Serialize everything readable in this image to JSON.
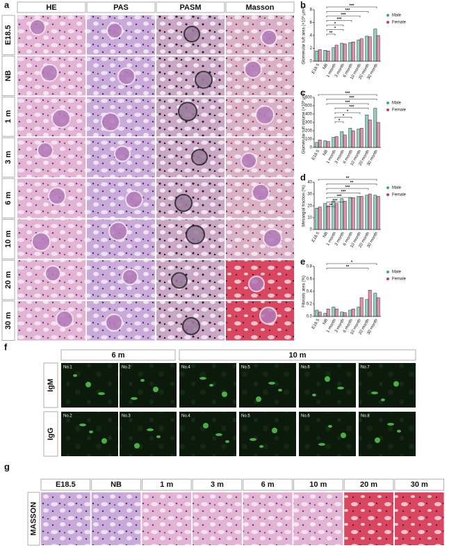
{
  "panel_a": {
    "letter": "a",
    "columns": [
      "HE",
      "PAS",
      "PASM",
      "Masson"
    ],
    "rows": [
      "E18.5",
      "NB",
      "1 m",
      "3 m",
      "6 m",
      "10 m",
      "20 m",
      "30 m"
    ]
  },
  "chart_data": [
    {
      "type": "bar",
      "letter": "b",
      "ylabel": "Glomerular tuft area (×10³ μm²)",
      "categories": [
        "E18.5",
        "NB",
        "1 month",
        "3 month",
        "6 month",
        "10 month",
        "20 month",
        "30 month"
      ],
      "series": [
        {
          "name": "Male",
          "color": "#3aa796",
          "values": [
            1.6,
            1.7,
            2.1,
            2.8,
            2.9,
            3.3,
            3.9,
            5.0
          ]
        },
        {
          "name": "Female",
          "color": "#c23b63",
          "values": [
            1.8,
            1.6,
            2.5,
            2.7,
            3.0,
            3.5,
            3.8,
            4.0
          ]
        }
      ],
      "ylim": [
        0,
        8
      ],
      "yticks": [
        0,
        2,
        4,
        6,
        8
      ],
      "significance": [
        {
          "label": "***",
          "from": "NB",
          "to": "30 month"
        },
        {
          "label": "***",
          "from": "NB",
          "to": "20 month"
        },
        {
          "label": "***",
          "from": "NB",
          "to": "10 month"
        },
        {
          "label": "***",
          "from": "NB",
          "to": "6 month"
        },
        {
          "label": "*",
          "from": "NB",
          "to": "3 month"
        },
        {
          "label": "*",
          "from": "NB",
          "to": "3 month"
        },
        {
          "label": "**",
          "from": "NB",
          "to": "1 month"
        }
      ]
    },
    {
      "type": "bar",
      "letter": "c",
      "ylabel": "Glomerular tuft volume (×10³ μm³)",
      "categories": [
        "E18.5",
        "NB",
        "1 month",
        "3 month",
        "6 month",
        "10 month",
        "20 month",
        "30 month"
      ],
      "series": [
        {
          "name": "Male",
          "color": "#3aa796",
          "values": [
            60,
            80,
            120,
            190,
            230,
            220,
            390,
            470
          ]
        },
        {
          "name": "Female",
          "color": "#c23b63",
          "values": [
            90,
            70,
            130,
            150,
            200,
            230,
            330,
            300
          ]
        }
      ],
      "ylim": [
        0,
        600
      ],
      "yticks": [
        0,
        100,
        200,
        300,
        400,
        500,
        600
      ],
      "significance": [
        {
          "label": "***",
          "from": "E18.5",
          "to": "30 month"
        },
        {
          "label": "***",
          "from": "NB",
          "to": "30 month"
        },
        {
          "label": "***",
          "from": "NB",
          "to": "20 month"
        },
        {
          "label": "***",
          "from": "1 month",
          "to": "20 month"
        },
        {
          "label": "*",
          "from": "1 month",
          "to": "10 month"
        },
        {
          "label": "*",
          "from": "1 month",
          "to": "6 month"
        },
        {
          "label": "*",
          "from": "1 month",
          "to": "3 month"
        }
      ]
    },
    {
      "type": "bar",
      "letter": "d",
      "ylabel": "Mesangial fraction (%)",
      "categories": [
        "E18.5",
        "NB",
        "1 month",
        "3 month",
        "6 month",
        "10 month",
        "20 month",
        "30 month"
      ],
      "series": [
        {
          "name": "Male",
          "color": "#3aa796",
          "values": [
            18,
            22,
            24,
            26,
            27,
            28,
            29,
            29
          ]
        },
        {
          "name": "Female",
          "color": "#c23b63",
          "values": [
            19,
            20,
            22,
            24,
            27,
            28,
            30,
            28
          ]
        }
      ],
      "ylim": [
        0,
        40
      ],
      "yticks": [
        0,
        10,
        20,
        30,
        40
      ],
      "significance": [
        {
          "label": "**",
          "from": "E18.5",
          "to": "30 month"
        },
        {
          "label": "**",
          "from": "NB",
          "to": "30 month"
        },
        {
          "label": "***",
          "from": "NB",
          "to": "20 month"
        },
        {
          "label": "***",
          "from": "NB",
          "to": "10 month"
        },
        {
          "label": "***",
          "from": "NB",
          "to": "6 month"
        },
        {
          "label": "***",
          "from": "NB",
          "to": "3 month"
        },
        {
          "label": "**",
          "from": "NB",
          "to": "1 month"
        }
      ]
    },
    {
      "type": "bar",
      "letter": "e",
      "ylabel": "Fibrosis area (%)",
      "categories": [
        "E18.5",
        "NB",
        "1 month",
        "3 month",
        "6 month",
        "10 month",
        "20 month",
        "30 month"
      ],
      "series": [
        {
          "name": "Male",
          "color": "#3aa796",
          "values": [
            0.1,
            0.05,
            0.15,
            0.07,
            0.1,
            0.15,
            0.27,
            0.37
          ]
        },
        {
          "name": "Female",
          "color": "#c23b63",
          "values": [
            0.07,
            0.12,
            0.12,
            0.06,
            0.12,
            0.3,
            0.42,
            0.3
          ]
        }
      ],
      "ylim": [
        0,
        0.8
      ],
      "yticks": [
        {
          "value": 0,
          "label": "0.0"
        },
        0.2,
        0.4,
        0.6,
        0.8
      ],
      "significance": [
        {
          "label": "*",
          "from": "NB",
          "to": "30 month"
        },
        {
          "label": "**",
          "from": "NB",
          "to": "20 month"
        }
      ]
    }
  ],
  "panel_f": {
    "letter": "f",
    "groups": [
      "6 m",
      "10 m"
    ],
    "rows": [
      {
        "label": "IgM",
        "images": [
          "No.1",
          "No.2",
          "No.4",
          "No.5",
          "No.6",
          "No.7"
        ]
      },
      {
        "label": "IgG",
        "images": [
          "No.2",
          "No.3",
          "No.4",
          "No.5",
          "No.6",
          "No.8"
        ]
      }
    ]
  },
  "panel_g": {
    "letter": "g",
    "columns": [
      "E18.5",
      "NB",
      "1 m",
      "3 m",
      "6 m",
      "10 m",
      "20 m",
      "30 m"
    ],
    "row": "MASSON"
  }
}
